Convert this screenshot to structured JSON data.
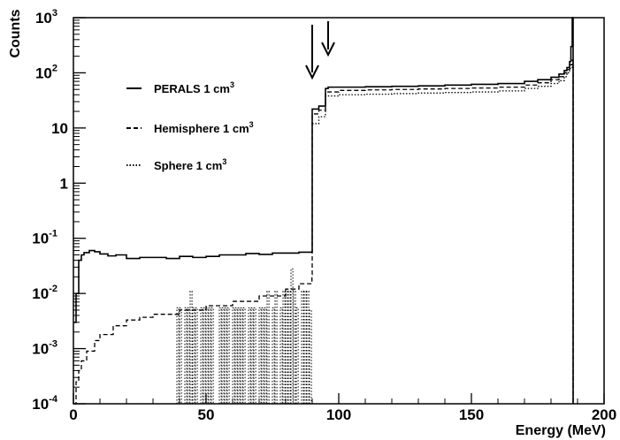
{
  "chart_data": {
    "type": "line",
    "title": "",
    "xlabel": "Energy (MeV)",
    "ylabel": "Counts",
    "xlim": [
      0,
      200
    ],
    "ylim": [
      0.0001,
      1000
    ],
    "yscale": "log",
    "x_ticks": [
      {
        "value": 0,
        "label": "0"
      },
      {
        "value": 50,
        "label": "50"
      },
      {
        "value": 100,
        "label": "100"
      },
      {
        "value": 150,
        "label": "150"
      },
      {
        "value": 200,
        "label": "200"
      }
    ],
    "y_ticks": [
      {
        "value": 0.0001,
        "base": "10",
        "exp": "-4",
        "label": ""
      },
      {
        "value": 0.001,
        "base": "10",
        "exp": "-3",
        "label": ""
      },
      {
        "value": 0.01,
        "base": "10",
        "exp": "-2",
        "label": ""
      },
      {
        "value": 0.1,
        "base": "10",
        "exp": "-1",
        "label": ""
      },
      {
        "value": 1,
        "base": "",
        "exp": "",
        "label": "1"
      },
      {
        "value": 10,
        "base": "",
        "exp": "",
        "label": "10"
      },
      {
        "value": 100,
        "base": "10",
        "exp": "2",
        "label": ""
      },
      {
        "value": 1000,
        "base": "10",
        "exp": "3",
        "label": ""
      }
    ],
    "grid": false,
    "legend_position": "top-left",
    "arrows_at_energy": [
      90,
      96
    ],
    "series": [
      {
        "name": "PERALS 1 cm",
        "name_sup": "3",
        "style": "solid",
        "x": [
          0,
          1,
          2,
          3,
          4,
          6,
          8,
          10,
          13,
          16,
          20,
          25,
          30,
          35,
          40,
          45,
          50,
          55,
          60,
          65,
          70,
          75,
          80,
          85,
          89.9,
          90,
          92,
          92.5,
          94.5,
          95,
          96,
          100,
          110,
          120,
          130,
          140,
          150,
          160,
          170,
          175,
          180,
          183,
          185,
          186,
          187,
          187.5,
          188
        ],
        "y": [
          0.003,
          0.01,
          0.04,
          0.05,
          0.055,
          0.06,
          0.057,
          0.052,
          0.048,
          0.05,
          0.043,
          0.045,
          0.045,
          0.043,
          0.047,
          0.045,
          0.047,
          0.05,
          0.05,
          0.053,
          0.051,
          0.054,
          0.054,
          0.056,
          0.057,
          22,
          22,
          25,
          25,
          52,
          55,
          55,
          56,
          57,
          58,
          60,
          62,
          64,
          70,
          75,
          83,
          95,
          110,
          125,
          160,
          300,
          1000
        ]
      },
      {
        "name": "Hemisphere 1 cm",
        "name_sup": "3",
        "style": "dashed",
        "x": [
          0,
          1,
          2,
          3,
          5,
          8,
          10,
          15,
          20,
          25,
          30,
          40,
          50,
          60,
          70,
          80,
          85,
          89.9,
          90,
          92,
          92.5,
          94.5,
          95,
          100,
          110,
          120,
          130,
          140,
          150,
          160,
          170,
          175,
          180,
          183,
          185,
          186,
          187,
          188
        ],
        "y": [
          0.0001,
          0.00025,
          0.0004,
          0.0006,
          0.0009,
          0.0014,
          0.0018,
          0.0026,
          0.0033,
          0.0037,
          0.0042,
          0.005,
          0.006,
          0.0072,
          0.009,
          0.012,
          0.015,
          0.022,
          18,
          18,
          21,
          21,
          45,
          48,
          49,
          50,
          51,
          52,
          53,
          55,
          60,
          66,
          75,
          85,
          100,
          115,
          140,
          170
        ]
      },
      {
        "name": "Sphere 1 cm",
        "name_sup": "3",
        "style": "dotted",
        "x": [
          90,
          92,
          92.5,
          94.5,
          95,
          100,
          110,
          120,
          130,
          140,
          150,
          160,
          170,
          175,
          180,
          183,
          185,
          186,
          187,
          188
        ],
        "y": [
          12,
          12,
          16,
          16,
          38,
          40,
          41,
          42,
          43,
          44,
          45,
          47,
          52,
          57,
          64,
          72,
          85,
          100,
          120,
          140
        ],
        "spikes": [
          39,
          40,
          42,
          43,
          44,
          45,
          46,
          48,
          49,
          50,
          51,
          52,
          55,
          56,
          57,
          58,
          60,
          61,
          62,
          63,
          64,
          66,
          67,
          68,
          70,
          71,
          72,
          73,
          75,
          76,
          78,
          79,
          80,
          81,
          82,
          83,
          84,
          86,
          87,
          88,
          89
        ],
        "spike_heights": [
          0.0055,
          0.0055,
          0.0055,
          0.0055,
          0.011,
          0.0055,
          0.0055,
          0.0055,
          0.0055,
          0.0055,
          0.0055,
          0.0055,
          0.0055,
          0.0055,
          0.0055,
          0.0055,
          0.0055,
          0.0055,
          0.0055,
          0.0055,
          0.0055,
          0.0055,
          0.0055,
          0.0055,
          0.0055,
          0.0055,
          0.0055,
          0.011,
          0.0055,
          0.011,
          0.0055,
          0.011,
          0.011,
          0.011,
          0.028,
          0.011,
          0.0055,
          0.011,
          0.011,
          0.011,
          0.005
        ]
      }
    ]
  }
}
